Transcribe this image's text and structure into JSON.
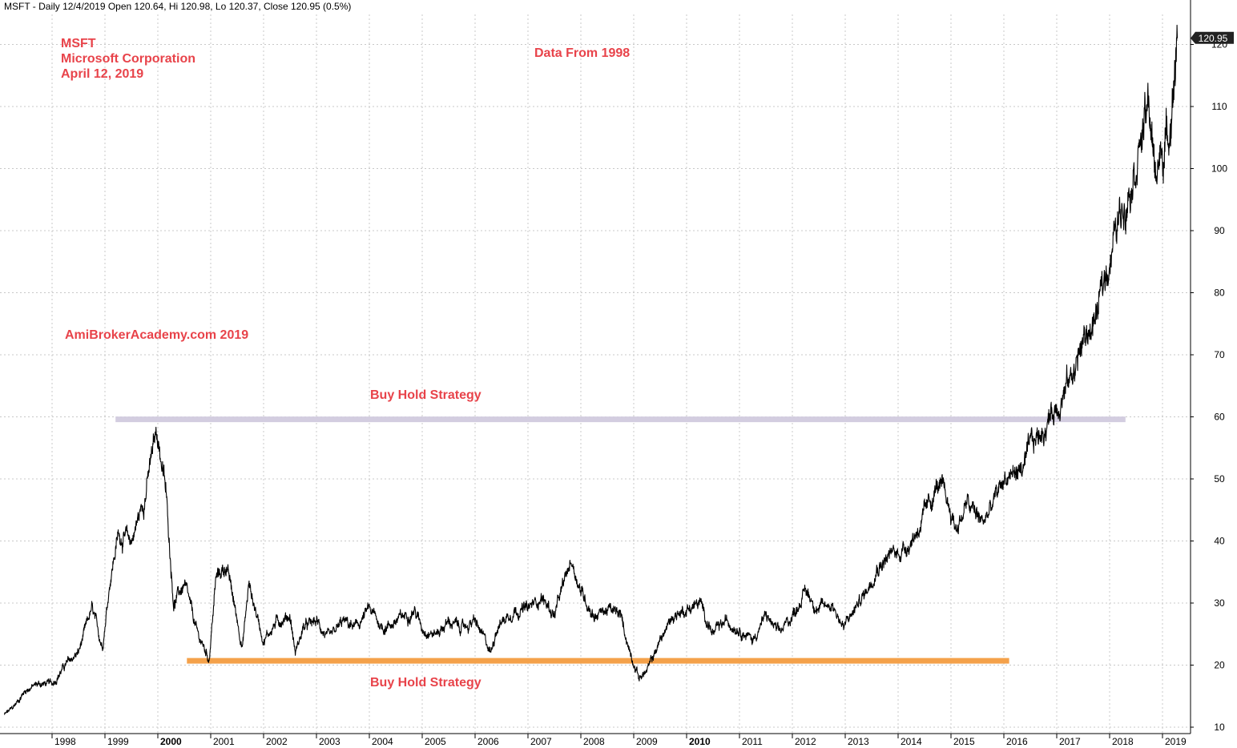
{
  "header": {
    "text": "MSFT - Daily 12/4/2019 Open 120.64, Hi 120.98, Lo 120.37, Close 120.95 (0.5%)"
  },
  "annotations": {
    "ticker": "MSFT",
    "company": "Microsoft Corporation",
    "date": "April 12, 2019",
    "data_from": "Data From 1998",
    "watermark": "AmiBrokerAcademy.com  2019",
    "buy_hold_top": "Buy Hold Strategy",
    "buy_hold_bottom": "Buy Hold Strategy"
  },
  "last_price_label": "120.95",
  "colors": {
    "price_line": "#000000",
    "grid": "#c8c8c8",
    "resistance_line": "#d3cde0",
    "support_line": "#f4a14a",
    "annotation_text": "#e8434a",
    "price_tag_bg": "#222222"
  },
  "chart_data": {
    "type": "line",
    "y_axis_position": "right",
    "ylim": [
      9,
      125
    ],
    "y_ticks": [
      10,
      20,
      30,
      40,
      50,
      60,
      70,
      80,
      90,
      100,
      110,
      120
    ],
    "x_ticks": [
      {
        "label": "1998",
        "year": 1998,
        "bold": false
      },
      {
        "label": "1999",
        "year": 1999,
        "bold": false
      },
      {
        "label": "2000",
        "year": 2000,
        "bold": true
      },
      {
        "label": "2001",
        "year": 2001,
        "bold": false
      },
      {
        "label": "2002",
        "year": 2002,
        "bold": false
      },
      {
        "label": "2003",
        "year": 2003,
        "bold": false
      },
      {
        "label": "2004",
        "year": 2004,
        "bold": false
      },
      {
        "label": "2005",
        "year": 2005,
        "bold": false
      },
      {
        "label": "2006",
        "year": 2006,
        "bold": false
      },
      {
        "label": "2007",
        "year": 2007,
        "bold": false
      },
      {
        "label": "2008",
        "year": 2008,
        "bold": false
      },
      {
        "label": "2009",
        "year": 2009,
        "bold": false
      },
      {
        "label": "2010",
        "year": 2010,
        "bold": true
      },
      {
        "label": "2011",
        "year": 2011,
        "bold": false
      },
      {
        "label": "2012",
        "year": 2012,
        "bold": false
      },
      {
        "label": "2013",
        "year": 2013,
        "bold": false
      },
      {
        "label": "2014",
        "year": 2014,
        "bold": false
      },
      {
        "label": "2015",
        "year": 2015,
        "bold": false
      },
      {
        "label": "2016",
        "year": 2016,
        "bold": false
      },
      {
        "label": "2017",
        "year": 2017,
        "bold": false
      },
      {
        "label": "2018",
        "year": 2018,
        "bold": false
      },
      {
        "label": "2019",
        "year": 2019,
        "bold": false
      }
    ],
    "grid": true,
    "series": [
      {
        "x": [
          1997.1,
          1997.25,
          1997.5,
          1997.75,
          1998.0,
          1998.25,
          1998.5,
          1998.75,
          1998.95,
          1999.1,
          1999.25,
          1999.5,
          1999.75,
          1999.98,
          2000.15,
          2000.3,
          2000.5,
          2000.75,
          2000.97,
          2001.1,
          2001.3,
          2001.6,
          2001.72,
          2002.0,
          2002.25,
          2002.5,
          2002.6,
          2002.75,
          2003.0,
          2003.25,
          2003.5,
          2003.75,
          2004.0,
          2004.25,
          2004.5,
          2004.85,
          2005.0,
          2005.25,
          2005.5,
          2005.75,
          2006.0,
          2006.3,
          2006.4,
          2006.5,
          2006.75,
          2007.0,
          2007.25,
          2007.5,
          2007.82,
          2008.0,
          2008.25,
          2008.5,
          2008.75,
          2008.9,
          2009.1,
          2009.25,
          2009.5,
          2009.75,
          2010.0,
          2010.25,
          2010.5,
          2010.75,
          2011.0,
          2011.25,
          2011.5,
          2011.75,
          2012.0,
          2012.25,
          2012.5,
          2012.75,
          2012.97,
          2013.25,
          2013.4,
          2013.6,
          2013.9,
          2014.0,
          2014.25,
          2014.5,
          2014.75,
          2014.9,
          2015.1,
          2015.3,
          2015.6,
          2015.75,
          2016.0,
          2016.4,
          2016.5,
          2016.75,
          2017.0,
          2017.25,
          2017.5,
          2017.75,
          2017.9,
          2018.0,
          2018.25,
          2018.5,
          2018.75,
          2018.85,
          2018.97,
          2019.1,
          2019.2,
          2019.28
        ],
        "values": [
          12,
          13,
          16,
          17,
          17,
          20,
          22,
          29,
          23,
          34,
          41,
          40,
          47,
          58,
          48,
          30,
          33,
          25,
          21,
          34,
          36,
          23,
          33,
          24,
          27,
          28,
          22,
          26,
          27,
          24,
          27,
          26,
          29,
          26,
          27,
          29,
          26,
          25,
          27,
          26,
          27,
          22,
          26,
          27,
          29,
          29,
          31,
          28,
          37,
          32,
          28,
          29,
          28,
          23,
          18,
          19,
          24,
          28,
          29,
          30,
          25,
          27,
          26,
          24,
          28,
          25,
          28,
          32,
          29,
          30,
          26,
          30,
          32,
          36,
          38,
          38,
          40,
          44,
          49,
          47,
          42,
          46,
          43,
          45,
          50,
          52,
          55,
          58,
          62,
          66,
          72,
          76,
          82,
          86,
          94,
          102,
          110,
          99,
          102,
          105,
          113,
          121
        ]
      }
    ],
    "reference_lines": [
      {
        "value": 59.6,
        "x_start": 1999.2,
        "x_end": 2018.3,
        "role": "resistance"
      },
      {
        "value": 20.7,
        "x_start": 2000.55,
        "x_end": 2016.1,
        "role": "support"
      }
    ]
  }
}
